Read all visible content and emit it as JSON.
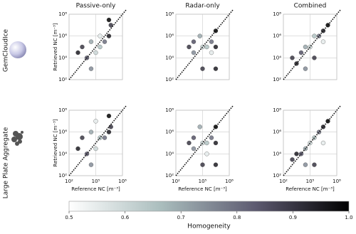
{
  "chart_data": [
    {
      "type": "scatter",
      "title": "Passive-only",
      "ylabel": "Retrieved NC [m⁻³]",
      "row_label": "GemCloudIce",
      "x": [
        1000,
        3000,
        10000,
        30000,
        100000,
        300000,
        1000000,
        3000000,
        3000000,
        5000000,
        30000,
        300000
      ],
      "y": [
        30000,
        100000,
        10000,
        300000,
        30000,
        100000,
        300000,
        1000000,
        30000000,
        10000000,
        1000,
        1000000
      ],
      "c": [
        0.95,
        0.9,
        0.85,
        0.7,
        0.6,
        0.65,
        0.8,
        0.95,
        1,
        0.9,
        0.75,
        0.55
      ],
      "xlim": [
        100,
        100000000
      ],
      "ylim": [
        100,
        100000000
      ],
      "log": true,
      "grid": true,
      "xticks": [
        100,
        100000,
        100000000
      ],
      "yticks": [
        {
          "value": 100,
          "label": "10²"
        },
        {
          "value": 10000,
          "label": "10⁴"
        },
        {
          "value": 1000000,
          "label": "10⁶"
        },
        {
          "value": 100000000,
          "label": "10⁸"
        }
      ]
    },
    {
      "type": "scatter",
      "title": "Radar-only",
      "x": [
        3000,
        10000,
        50000,
        100000,
        300000,
        1000000,
        3000000,
        3000000,
        10000,
        100000,
        3000000,
        1000000
      ],
      "y": [
        100000,
        300000,
        1000000,
        100000,
        100000,
        300000,
        100000,
        3000000,
        30000,
        1000,
        1000,
        30000
      ],
      "c": [
        0.9,
        0.85,
        0.7,
        0.6,
        0.65,
        0.8,
        0.95,
        1,
        0.75,
        0.9,
        0.95,
        0.55
      ],
      "xlim": [
        100,
        100000000
      ],
      "ylim": [
        100,
        100000000
      ],
      "log": true,
      "grid": true,
      "xticks": [
        100,
        100000,
        100000000
      ],
      "yticks": [
        {
          "value": 100,
          "label": "10²"
        },
        {
          "value": 10000,
          "label": "10⁴"
        },
        {
          "value": 1000000,
          "label": "10⁶"
        },
        {
          "value": 100000000,
          "label": "10⁸"
        }
      ]
    },
    {
      "type": "scatter",
      "title": "Combined",
      "x": [
        1000,
        3000,
        10000,
        30000,
        100000,
        300000,
        1000000,
        3000000,
        10000000,
        30000,
        300000,
        3000000
      ],
      "y": [
        10000,
        3000,
        30000,
        100000,
        100000,
        1000000,
        1000000,
        3000000,
        10000000,
        1000,
        10000,
        300000
      ],
      "c": [
        0.9,
        0.95,
        0.85,
        0.7,
        0.6,
        0.65,
        0.8,
        0.95,
        1,
        0.75,
        0.9,
        0.55
      ],
      "xlim": [
        100,
        100000000
      ],
      "ylim": [
        100,
        100000000
      ],
      "log": true,
      "grid": true,
      "xticks": [
        100,
        100000,
        100000000
      ],
      "yticks": [
        {
          "value": 100,
          "label": "10²"
        },
        {
          "value": 10000,
          "label": "10⁴"
        },
        {
          "value": 1000000,
          "label": "10⁶"
        },
        {
          "value": 100000000,
          "label": "10⁸"
        }
      ]
    },
    {
      "type": "scatter",
      "xlabel": "Reference NC [m⁻³]",
      "ylabel": "Retrieved NC [m⁻³]",
      "row_label": "Large Plate Aggregate",
      "x": [
        1000,
        3000,
        10000,
        30000,
        100000,
        300000,
        1000000,
        3000000,
        3000000,
        5000000,
        30000,
        100000
      ],
      "y": [
        30000,
        300000,
        10000,
        1000000,
        30000,
        300000,
        300000,
        1000000,
        30000000,
        3000000,
        1000,
        10000000
      ],
      "c": [
        0.95,
        0.9,
        0.85,
        0.7,
        0.6,
        0.65,
        0.8,
        0.95,
        1,
        0.9,
        0.75,
        0.55
      ],
      "xlim": [
        100,
        100000000
      ],
      "ylim": [
        100,
        100000000
      ],
      "log": true,
      "grid": true,
      "xticks": [
        {
          "value": 100,
          "label": "10²"
        },
        {
          "value": 100000,
          "label": "10⁵"
        },
        {
          "value": 100000000,
          "label": "10⁸"
        }
      ],
      "yticks": [
        {
          "value": 100,
          "label": "10²"
        },
        {
          "value": 10000,
          "label": "10⁴"
        },
        {
          "value": 1000000,
          "label": "10⁶"
        },
        {
          "value": 100000000,
          "label": "10⁸"
        }
      ]
    },
    {
      "type": "scatter",
      "xlabel": "Reference NC [m⁻³]",
      "x": [
        3000,
        10000,
        50000,
        100000,
        300000,
        1000000,
        3000000,
        3000000,
        10000,
        100000,
        3000000,
        300000
      ],
      "y": [
        100000,
        300000,
        3000000,
        100000,
        100000,
        300000,
        100000,
        3000000,
        30000,
        1000,
        1000,
        10000
      ],
      "c": [
        0.9,
        0.85,
        0.7,
        0.6,
        0.65,
        0.8,
        0.95,
        1,
        0.75,
        0.9,
        0.95,
        0.55
      ],
      "xlim": [
        100,
        100000000
      ],
      "ylim": [
        100,
        100000000
      ],
      "log": true,
      "grid": true,
      "xticks": [
        {
          "value": 100,
          "label": "10²"
        },
        {
          "value": 100000,
          "label": "10⁵"
        },
        {
          "value": 100000000,
          "label": "10⁸"
        }
      ],
      "yticks": [
        {
          "value": 100,
          "label": "10²"
        },
        {
          "value": 10000,
          "label": "10⁴"
        },
        {
          "value": 1000000,
          "label": "10⁶"
        },
        {
          "value": 100000000,
          "label": "10⁸"
        }
      ]
    },
    {
      "type": "scatter",
      "xlabel": "Reference NC [m⁻³]",
      "x": [
        1000,
        3000,
        10000,
        30000,
        100000,
        300000,
        1000000,
        3000000,
        10000000,
        30000,
        300000,
        3000000
      ],
      "y": [
        3000,
        10000,
        10000,
        30000,
        100000,
        300000,
        1000000,
        3000000,
        10000000,
        1000,
        1000,
        100000
      ],
      "c": [
        0.9,
        0.95,
        0.85,
        0.7,
        0.6,
        0.65,
        0.8,
        0.95,
        1,
        0.75,
        0.9,
        0.55
      ],
      "xlim": [
        100,
        100000000
      ],
      "ylim": [
        100,
        100000000
      ],
      "log": true,
      "grid": true,
      "xticks": [
        {
          "value": 100,
          "label": "10²"
        },
        {
          "value": 100000,
          "label": "10⁵"
        },
        {
          "value": 100000000,
          "label": "10⁸"
        }
      ],
      "yticks": [
        {
          "value": 100,
          "label": "10²"
        },
        {
          "value": 10000,
          "label": "10⁴"
        },
        {
          "value": 1000000,
          "label": "10⁶"
        },
        {
          "value": 100000000,
          "label": "10⁸"
        }
      ]
    },
    {
      "type": "colorbar",
      "label": "Homogeneity",
      "xlim": [
        0.5,
        1
      ],
      "colors": [
        "#ffffff",
        "#a9bcbc",
        "#5d5a70",
        "#000000"
      ],
      "xticks": [
        0.5,
        0.6,
        0.7,
        0.8,
        0.9,
        {
          "value": 1,
          "label": "1.0"
        }
      ]
    }
  ]
}
